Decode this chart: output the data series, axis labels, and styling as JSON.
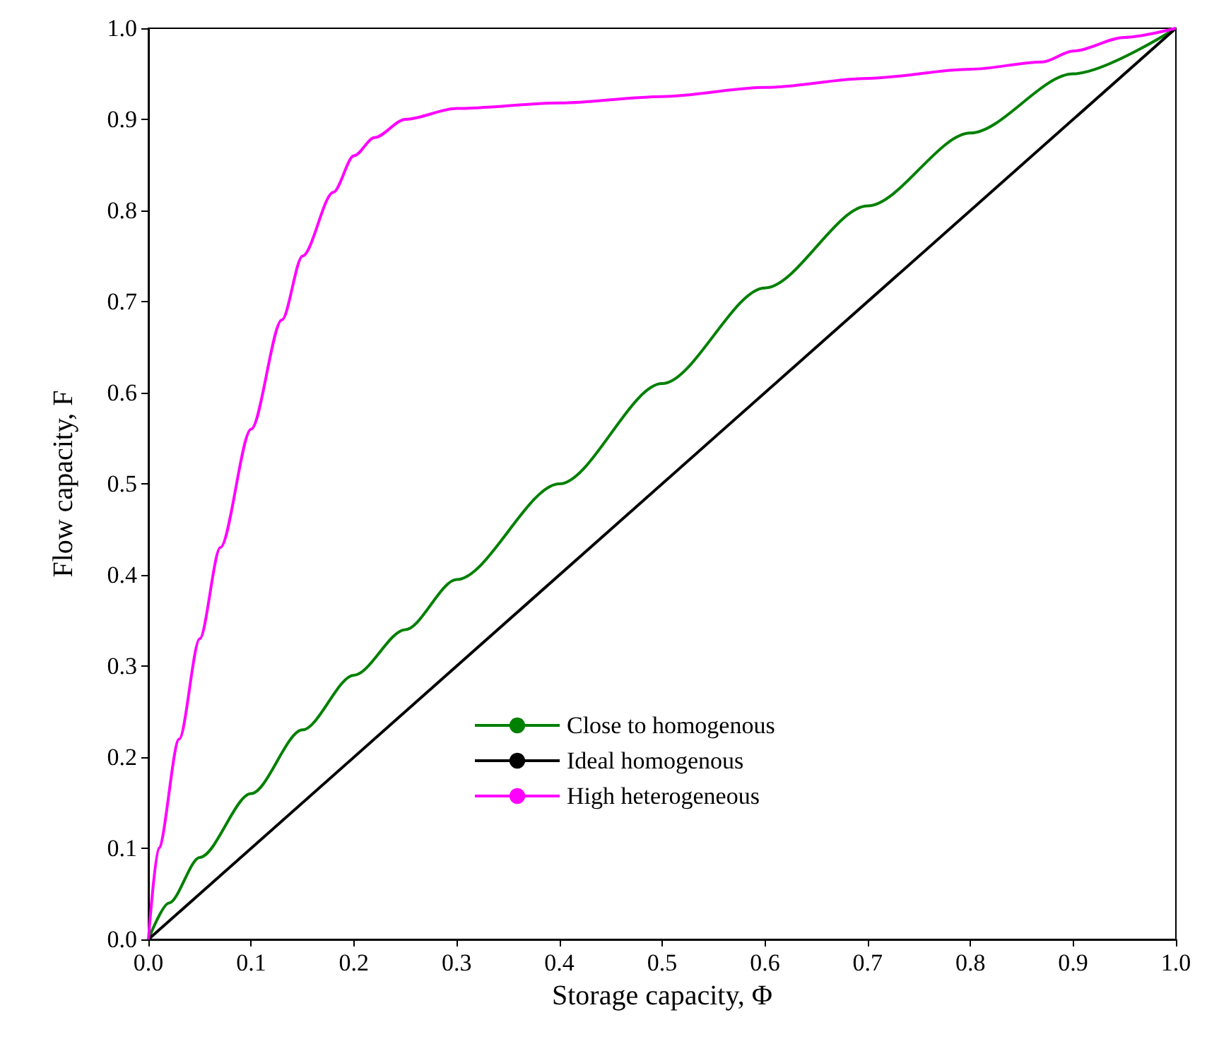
{
  "chart_data": {
    "type": "line",
    "xlabel": "Storage capacity, Φ",
    "ylabel": "Flow capacity, F",
    "xlim": [
      0,
      1
    ],
    "ylim": [
      0,
      1
    ],
    "xticks": [
      {
        "value": 0,
        "label": "0.0"
      },
      0.1,
      0.2,
      0.3,
      0.4,
      0.5,
      0.6,
      0.7,
      0.8,
      0.9,
      {
        "value": 1,
        "label": "1.0"
      }
    ],
    "yticks": [
      {
        "value": 0,
        "label": "0.0"
      },
      0.1,
      0.2,
      0.3,
      0.4,
      0.5,
      0.6,
      0.7,
      0.8,
      0.9,
      {
        "value": 1,
        "label": "1.0"
      }
    ],
    "grid": false,
    "legend": "bottom",
    "marker": "none",
    "line_style": "solid",
    "series": [
      {
        "name": "Close to homogenous",
        "color": "#008000",
        "x": [
          0,
          0.02,
          0.05,
          0.1,
          0.15,
          0.2,
          0.25,
          0.3,
          0.4,
          0.5,
          0.6,
          0.7,
          0.8,
          0.9,
          1
        ],
        "values": [
          0,
          0.04,
          0.09,
          0.16,
          0.23,
          0.29,
          0.34,
          0.395,
          0.5,
          0.61,
          0.715,
          0.805,
          0.885,
          0.95,
          1
        ]
      },
      {
        "name": "Ideal homogenous",
        "color": "#000000",
        "x": [
          0,
          1
        ],
        "values": [
          0,
          1
        ]
      },
      {
        "name": "High heterogeneous",
        "color": "#ff00ff",
        "x": [
          0,
          0.01,
          0.03,
          0.05,
          0.07,
          0.1,
          0.13,
          0.15,
          0.18,
          0.2,
          0.22,
          0.25,
          0.3,
          0.4,
          0.5,
          0.6,
          0.7,
          0.8,
          0.87,
          0.9,
          0.95,
          1
        ],
        "values": [
          0,
          0.1,
          0.22,
          0.33,
          0.43,
          0.56,
          0.68,
          0.75,
          0.82,
          0.86,
          0.88,
          0.9,
          0.912,
          0.918,
          0.925,
          0.935,
          0.945,
          0.955,
          0.963,
          0.975,
          0.99,
          1
        ]
      }
    ]
  }
}
